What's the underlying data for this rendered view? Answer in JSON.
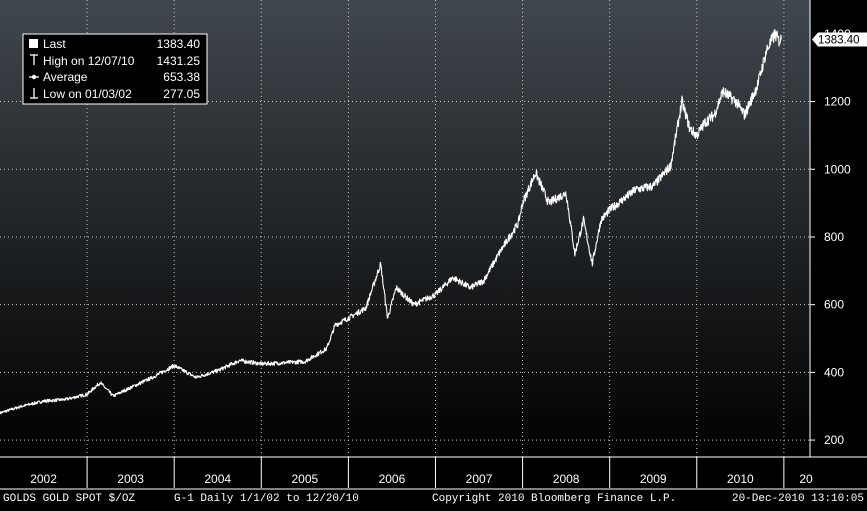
{
  "chart_data": {
    "type": "line",
    "title": "",
    "xlabel": "",
    "ylabel": "",
    "ylim": [
      150,
      1500
    ],
    "y_ticks": [
      200,
      400,
      600,
      800,
      1000,
      1200
    ],
    "top_tick_partial": "1400",
    "x_tick_labels": [
      "2002",
      "2003",
      "2004",
      "2005",
      "2006",
      "2007",
      "2008",
      "2009",
      "2010",
      "20"
    ],
    "xlim": [
      2002.0,
      2011.3
    ],
    "grid": true,
    "legend_position": "top-left",
    "series": [
      {
        "x": [
          2002.0,
          2002.25,
          2002.5,
          2002.75,
          2003.0,
          2003.15,
          2003.3,
          2003.5,
          2003.75,
          2004.0,
          2004.25,
          2004.5,
          2004.75,
          2005.0,
          2005.25,
          2005.5,
          2005.75,
          2005.85,
          2006.0,
          2006.2,
          2006.37,
          2006.45,
          2006.55,
          2006.75,
          2007.0,
          2007.2,
          2007.4,
          2007.55,
          2007.75,
          2007.95,
          2008.0,
          2008.15,
          2008.2,
          2008.3,
          2008.5,
          2008.6,
          2008.7,
          2008.8,
          2008.9,
          2009.0,
          2009.15,
          2009.3,
          2009.5,
          2009.7,
          2009.83,
          2009.92,
          2010.0,
          2010.1,
          2010.2,
          2010.3,
          2010.45,
          2010.55,
          2010.7,
          2010.8,
          2010.9,
          2010.94,
          2010.97
        ],
        "y": [
          280,
          300,
          315,
          320,
          335,
          370,
          330,
          355,
          385,
          420,
          385,
          405,
          435,
          425,
          428,
          432,
          470,
          540,
          560,
          590,
          720,
          560,
          650,
          600,
          630,
          680,
          650,
          670,
          760,
          840,
          900,
          990,
          960,
          900,
          930,
          750,
          850,
          720,
          850,
          880,
          910,
          940,
          950,
          1010,
          1200,
          1120,
          1100,
          1140,
          1160,
          1230,
          1200,
          1160,
          1250,
          1350,
          1400,
          1380,
          1383.4
        ]
      }
    ],
    "legend": [
      {
        "marker": "square",
        "label": "Last",
        "value": "1383.40"
      },
      {
        "marker": "T",
        "label": "High on 12/07/10",
        "value": "1431.25"
      },
      {
        "marker": "-o-",
        "label": "Average",
        "value": "653.38"
      },
      {
        "marker": "⊥",
        "label": "Low on 01/03/02",
        "value": "277.05"
      }
    ],
    "last_value_label": "1383.40"
  },
  "footer": {
    "ticker": "GOLDS  GOLD SPOT $/OZ",
    "info": "G-1  Daily  1/1/02 to 12/20/10",
    "copyright": "Copyright 2010 Bloomberg Finance L.P.",
    "timestamp": "20-Dec-2010 13:10:05"
  },
  "colors": {
    "background_top": "#40474d",
    "background_bottom": "#000000",
    "line": "#ffffff",
    "grid": "#c8c8c8"
  }
}
